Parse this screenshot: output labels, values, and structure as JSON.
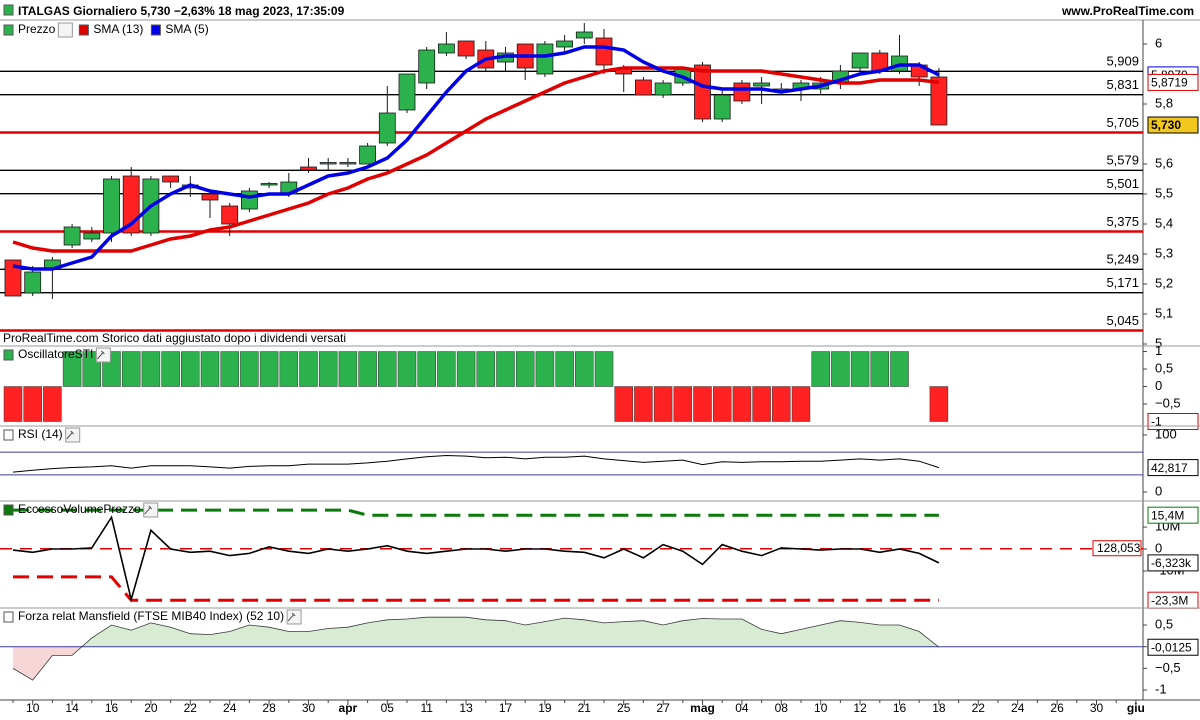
{
  "header": {
    "title": "ITALGAS Giornaliero 5,730 −2,63% 18 mag 2023, 17:35:09",
    "site": "www.ProRealTime.com"
  },
  "chart_data": [
    {
      "type": "candlestick",
      "legend": [
        "Prezzo",
        "SMA (13)",
        "SMA (5)"
      ],
      "note": "ProRealTime.com Storico dati aggiustato dopo i dividendi versati",
      "categories": [
        null,
        "10",
        null,
        "14",
        null,
        "16",
        null,
        "20",
        null,
        "22",
        null,
        "24",
        null,
        "28",
        null,
        "30",
        null,
        "apr",
        null,
        "05",
        null,
        "11",
        null,
        "13",
        null,
        "17",
        null,
        "19",
        null,
        "21",
        null,
        "25",
        null,
        "27",
        null,
        "mag",
        null,
        "04",
        null,
        "08",
        null,
        "10",
        null,
        "12",
        null,
        "16",
        null,
        "18",
        null,
        "22",
        null,
        "24",
        null,
        "26",
        null,
        "30",
        null,
        "giu"
      ],
      "open": [
        5.28,
        5.17,
        5.25,
        5.33,
        5.35,
        5.37,
        5.56,
        5.37,
        5.56,
        5.52,
        5.5,
        5.46,
        5.45,
        5.53,
        5.5,
        5.59,
        5.6,
        5.6,
        5.6,
        5.67,
        5.78,
        5.87,
        5.97,
        6.01,
        5.98,
        5.94,
        6.0,
        5.9,
        5.99,
        6.02,
        6.02,
        5.92,
        5.88,
        5.83,
        5.87,
        5.93,
        5.75,
        5.87,
        5.86,
        5.84,
        5.85,
        5.85,
        5.87,
        5.92,
        5.97,
        5.91,
        5.93,
        5.89,
        null,
        null,
        null,
        null,
        null,
        null,
        null,
        null,
        null,
        null
      ],
      "high": [
        5.28,
        5.26,
        5.29,
        5.4,
        5.39,
        5.56,
        5.59,
        5.56,
        5.56,
        5.56,
        5.51,
        5.47,
        5.52,
        5.54,
        5.57,
        5.62,
        5.62,
        5.62,
        5.67,
        5.86,
        5.9,
        5.99,
        6.04,
        6.01,
        6.01,
        5.99,
        6.0,
        6.01,
        6.03,
        6.07,
        6.05,
        5.93,
        5.89,
        5.88,
        5.92,
        5.94,
        5.85,
        5.88,
        5.89,
        5.87,
        5.88,
        5.89,
        5.93,
        5.97,
        5.98,
        6.03,
        5.94,
        5.92,
        null,
        null,
        null,
        null,
        null,
        null,
        null,
        null,
        null,
        null
      ],
      "low": [
        5.16,
        5.16,
        5.15,
        5.32,
        5.34,
        5.34,
        5.36,
        5.36,
        5.52,
        5.49,
        5.42,
        5.36,
        5.44,
        5.52,
        5.49,
        5.57,
        5.58,
        5.59,
        5.6,
        5.66,
        5.77,
        5.85,
        5.96,
        5.95,
        5.91,
        5.91,
        5.88,
        5.89,
        5.97,
        6.0,
        5.9,
        5.84,
        5.83,
        5.82,
        5.86,
        5.74,
        5.74,
        5.8,
        5.8,
        5.83,
        5.81,
        5.83,
        5.85,
        5.9,
        5.9,
        5.9,
        5.86,
        5.73,
        null,
        null,
        null,
        null,
        null,
        null,
        null,
        null,
        null,
        null
      ],
      "close": [
        5.16,
        5.24,
        5.28,
        5.39,
        5.37,
        5.55,
        5.37,
        5.55,
        5.54,
        5.53,
        5.48,
        5.4,
        5.51,
        5.535,
        5.54,
        5.58,
        5.605,
        5.605,
        5.66,
        5.77,
        5.9,
        5.98,
        6.0,
        5.96,
        5.92,
        5.97,
        5.92,
        6.0,
        6.01,
        6.04,
        5.93,
        5.9,
        5.83,
        5.87,
        5.92,
        5.75,
        5.83,
        5.81,
        5.87,
        5.85,
        5.87,
        5.87,
        5.91,
        5.97,
        5.91,
        5.96,
        5.89,
        5.73,
        null,
        null,
        null,
        null,
        null,
        null,
        null,
        null,
        null,
        null
      ],
      "up_color": "#2bb24c",
      "down_color": "#ff2222",
      "series": [
        {
          "name": "SMA (13)",
          "color": "#e00000",
          "values": [
            5.34,
            5.32,
            5.31,
            5.31,
            5.31,
            5.31,
            5.31,
            5.33,
            5.35,
            5.36,
            5.38,
            5.39,
            5.41,
            5.43,
            5.45,
            5.47,
            5.5,
            5.52,
            5.55,
            5.57,
            5.6,
            5.63,
            5.67,
            5.71,
            5.75,
            5.78,
            5.81,
            5.84,
            5.87,
            5.89,
            5.91,
            5.92,
            5.92,
            5.92,
            5.92,
            5.91,
            5.91,
            5.91,
            5.91,
            5.9,
            5.89,
            5.88,
            5.87,
            5.87,
            5.88,
            5.88,
            5.88,
            5.8719,
            null,
            null,
            null,
            null,
            null,
            null,
            null,
            null,
            null,
            null
          ]
        },
        {
          "name": "SMA (5)",
          "color": "#0000e6",
          "values": [
            5.26,
            5.25,
            5.25,
            5.27,
            5.29,
            5.36,
            5.4,
            5.46,
            5.5,
            5.53,
            5.51,
            5.5,
            5.49,
            5.5,
            5.5,
            5.53,
            5.56,
            5.57,
            5.59,
            5.62,
            5.68,
            5.76,
            5.84,
            5.91,
            5.95,
            5.96,
            5.96,
            5.96,
            5.97,
            5.99,
            5.99,
            5.98,
            5.94,
            5.91,
            5.89,
            5.86,
            5.85,
            5.85,
            5.85,
            5.84,
            5.85,
            5.86,
            5.88,
            5.9,
            5.91,
            5.93,
            5.93,
            5.897,
            null,
            null,
            null,
            null,
            null,
            null,
            null,
            null,
            null,
            null
          ]
        }
      ],
      "levels": [
        {
          "value": 5.909,
          "label": "5,909",
          "color": "#000000"
        },
        {
          "value": 5.831,
          "label": "5,831",
          "color": "#000000"
        },
        {
          "value": 5.705,
          "label": "5,705",
          "color": "#e00000"
        },
        {
          "value": 5.579,
          "label": "5,579",
          "color": "#000000"
        },
        {
          "value": 5.501,
          "label": "5,501",
          "color": "#000000"
        },
        {
          "value": 5.375,
          "label": "5,375",
          "color": "#e00000"
        },
        {
          "value": 5.249,
          "label": "5,249",
          "color": "#000000"
        },
        {
          "value": 5.171,
          "label": "5,171",
          "color": "#000000"
        },
        {
          "value": 5.045,
          "label": "5,045",
          "color": "#e00000"
        }
      ],
      "ylim": [
        5.0,
        6.08
      ],
      "yticks": [
        6,
        {
          "value": 5.8,
          "label": "5,8"
        },
        {
          "value": 5.6,
          "label": "5,6"
        },
        {
          "value": 5.5,
          "label": "5,5"
        },
        {
          "value": 5.4,
          "label": "5,4"
        },
        {
          "value": 5.3,
          "label": "5,3"
        },
        {
          "value": 5.2,
          "label": "5,2"
        },
        {
          "value": 5.1,
          "label": "5,1"
        },
        5
      ],
      "badges": [
        {
          "value": 5.897,
          "label": "5,8970",
          "color": "#0000e6"
        },
        {
          "value": 5.8719,
          "label": "5,8719",
          "color": "#e00000"
        },
        {
          "value": 5.73,
          "label": "5,730",
          "color": "#000000",
          "fill": "#f2c81e"
        }
      ]
    },
    {
      "type": "bar",
      "title": "OscillatoreSTI",
      "up_color": "#2bb24c",
      "down_color": "#ff2222",
      "values": [
        -1,
        -1,
        -1,
        1,
        1,
        1,
        1,
        1,
        1,
        1,
        1,
        1,
        1,
        1,
        1,
        1,
        1,
        1,
        1,
        1,
        1,
        1,
        1,
        1,
        1,
        1,
        1,
        1,
        1,
        1,
        1,
        -1,
        -1,
        -1,
        -1,
        -1,
        -1,
        -1,
        -1,
        -1,
        -1,
        1,
        1,
        1,
        1,
        1,
        0,
        -1,
        null,
        null,
        null,
        null,
        null,
        null,
        null,
        null,
        null,
        null
      ],
      "ylim": [
        -1.1,
        1.13
      ],
      "yticks": [
        1,
        {
          "value": 0.5,
          "label": "0,5"
        },
        0,
        {
          "value": -0.5,
          "label": "−0,5"
        }
      ],
      "badges": [
        {
          "value": -1,
          "label": "-1",
          "color": "#e00000"
        }
      ]
    },
    {
      "type": "line",
      "title": "RSI (14)",
      "color": "#000000",
      "values": [
        35,
        38,
        41,
        43,
        44,
        46,
        42,
        46,
        46,
        46,
        44,
        42,
        45,
        46,
        46,
        49,
        49,
        49,
        51,
        54,
        58,
        62,
        64,
        63,
        60,
        61,
        58,
        61,
        61,
        63,
        58,
        55,
        52,
        54,
        56,
        48,
        53,
        52,
        53,
        53,
        54,
        54,
        56,
        58,
        56,
        58,
        54,
        42.817,
        null,
        null,
        null,
        null,
        null,
        null,
        null,
        null,
        null,
        null
      ],
      "levels": [
        70,
        30
      ],
      "level_color": "#3a3aa0",
      "ylim": [
        -14,
        114
      ],
      "yticks": [
        100,
        0
      ],
      "badges": [
        {
          "value": 42.817,
          "label": "42,817",
          "color": "#000000"
        }
      ]
    },
    {
      "type": "line",
      "title": "EccessoVolumePrezzo",
      "series": [
        {
          "color": "#0a7a0a",
          "dashed": true,
          "values": [
            17700000,
            17700000,
            17700000,
            17700000,
            17700000,
            17700000,
            17700000,
            17700000,
            17700000,
            17700000,
            17700000,
            17700000,
            17700000,
            17700000,
            17700000,
            17700000,
            17700000,
            17700000,
            15400000,
            15400000,
            15400000,
            15400000,
            15400000,
            15400000,
            15400000,
            15400000,
            15400000,
            15400000,
            15400000,
            15400000,
            15400000,
            15400000,
            15400000,
            15400000,
            15400000,
            15400000,
            15400000,
            15400000,
            15400000,
            15400000,
            15400000,
            15400000,
            15400000,
            15400000,
            15400000,
            15400000,
            15400000,
            15400000,
            null,
            null,
            null,
            null,
            null,
            null,
            null,
            null,
            null,
            null
          ]
        },
        {
          "color": "#e00000",
          "dashed": true,
          "values": [
            -12700000,
            -12700000,
            -12700000,
            -12700000,
            -12700000,
            -12700000,
            -23300000,
            -23300000,
            -23300000,
            -23300000,
            -23300000,
            -23300000,
            -23300000,
            -23300000,
            -23300000,
            -23300000,
            -23300000,
            -23300000,
            -23300000,
            -23300000,
            -23300000,
            -23300000,
            -23300000,
            -23300000,
            -23300000,
            -23300000,
            -23300000,
            -23300000,
            -23300000,
            -23300000,
            -23300000,
            -23300000,
            -23300000,
            -23300000,
            -23300000,
            -23300000,
            -23300000,
            -23300000,
            -23300000,
            -23300000,
            -23300000,
            -23300000,
            -23300000,
            -23300000,
            -23300000,
            -23300000,
            -23300000,
            -23300000,
            null,
            null,
            null,
            null,
            null,
            null,
            null,
            null,
            null,
            null
          ]
        },
        {
          "color": "#000000",
          "values": [
            -500000,
            -1500000,
            0,
            0,
            500000,
            14500000,
            -23000000,
            8500000,
            0,
            -1500000,
            -1000000,
            -3000000,
            -2000000,
            1000000,
            -1000000,
            -2000000,
            0,
            -1000000,
            0,
            1500000,
            -1000000,
            -2000000,
            -1000000,
            0,
            0,
            -1000000,
            0,
            0,
            -1000000,
            -1500000,
            -4000000,
            0,
            -4000000,
            2000000,
            -1000000,
            -7000000,
            2000000,
            -1000000,
            -3000000,
            500000,
            0,
            -500000,
            0,
            0,
            -1500000,
            0,
            -2000000,
            -6323000,
            null,
            null,
            null,
            null,
            null,
            null,
            null,
            null,
            null,
            null
          ]
        }
      ],
      "reference": {
        "value": 128053,
        "label": "128,053",
        "color": "#e00000"
      },
      "ylim": [
        -26400000,
        21400000
      ],
      "yticks": [
        {
          "value": 10000000,
          "label": "10M"
        },
        0,
        {
          "value": -10000000,
          "label": "-10M"
        }
      ],
      "badges": [
        {
          "value": 15400000,
          "label": "15,4M",
          "color": "#0a7a0a"
        },
        {
          "value": -6323000,
          "label": "-6,323k",
          "color": "#000000"
        },
        {
          "value": -23300000,
          "label": "-23,3M",
          "color": "#e00000"
        }
      ]
    },
    {
      "type": "area",
      "title": "Forza relat Mansfield (FTSE MIB40 Index) (52 10)",
      "color": "#3a3a3a",
      "up_fill": "#d7ecd2",
      "down_fill": "#f6d6d6",
      "values": [
        -0.5,
        -0.77,
        -0.2,
        -0.2,
        0.2,
        0.5,
        0.38,
        0.55,
        0.45,
        0.3,
        0.28,
        0.35,
        0.5,
        0.45,
        0.35,
        0.35,
        0.42,
        0.45,
        0.55,
        0.62,
        0.64,
        0.68,
        0.68,
        0.68,
        0.62,
        0.6,
        0.5,
        0.58,
        0.66,
        0.62,
        0.55,
        0.58,
        0.6,
        0.5,
        0.6,
        0.65,
        0.64,
        0.64,
        0.4,
        0.3,
        0.4,
        0.5,
        0.6,
        0.56,
        0.5,
        0.5,
        0.35,
        -0.0125,
        null,
        null,
        null,
        null,
        null,
        null,
        null,
        null,
        null,
        null
      ],
      "ylim": [
        -1.23,
        0.87
      ],
      "yticks": [
        {
          "value": 0.5,
          "label": "0,5"
        },
        0,
        {
          "value": -0.5,
          "label": "−0,5"
        },
        -1
      ],
      "badges": [
        {
          "value": -0.0125,
          "label": "-0,0125",
          "color": "#000000"
        }
      ]
    }
  ]
}
